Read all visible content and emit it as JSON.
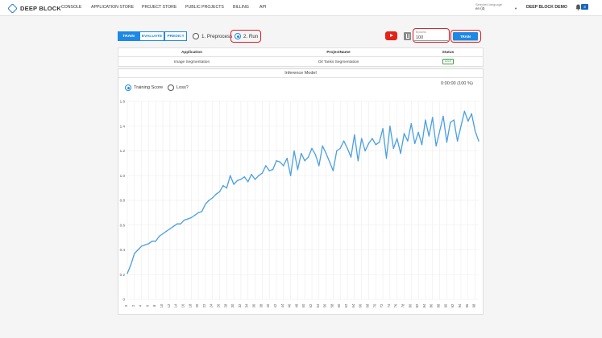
{
  "app": {
    "logo_text": "DEEP BLOCK",
    "nav": [
      "CONSOLE",
      "APPLICATION STORE",
      "PROJECT STORE",
      "PUBLIC PROJECTS",
      "BILLING",
      "API"
    ],
    "language_label": "Selected language",
    "language_value": "en (it)",
    "user_name": "DEEP BLOCK DEMO",
    "notification_count": "3"
  },
  "controls": {
    "modes": [
      "TRAIN",
      "EVALUATE",
      "PREDICT"
    ],
    "active_mode": "TRAIN",
    "steps": [
      "1. Preprocess",
      "2. Run"
    ],
    "selected_step": "2. Run",
    "epochs_label": "Epochs",
    "epochs_value": "100",
    "train_button": "TRAIN"
  },
  "info_table": {
    "headers": [
      "Application",
      "ProjectName",
      "Status"
    ],
    "row": {
      "application": "Image Segmentation",
      "project_name": "Oil Tanks Segmentation",
      "status": "IDLE"
    }
  },
  "panel": {
    "title": "Inference Model",
    "metric_options": [
      "Training Score",
      "Loss"
    ],
    "selected_metric": "Training Score",
    "timer": "0:00:00 (100 %)"
  },
  "colors": {
    "accent": "#1e88e5",
    "highlight": "#d8232a",
    "line": "#4a9fe0"
  },
  "chart_data": {
    "type": "line",
    "title": "",
    "xlabel": "",
    "ylabel": "",
    "ylim": [
      0,
      1.6
    ],
    "yticks": [
      0,
      0.2,
      0.4,
      0.6,
      0.8,
      1.0,
      1.2,
      1.4,
      1.6
    ],
    "xticks": [
      0,
      2,
      4,
      6,
      8,
      10,
      12,
      14,
      16,
      18,
      20,
      22,
      24,
      26,
      28,
      30,
      32,
      34,
      36,
      38,
      40,
      42,
      44,
      46,
      48,
      50,
      52,
      54,
      56,
      58,
      60,
      62,
      64,
      66,
      68,
      70,
      72,
      74,
      76,
      78,
      80,
      82,
      84,
      86,
      88,
      90,
      92,
      94,
      96,
      98
    ],
    "grid": true,
    "series": [
      {
        "name": "Training Score",
        "values": [
          0.21,
          0.28,
          0.37,
          0.4,
          0.43,
          0.44,
          0.45,
          0.47,
          0.47,
          0.51,
          0.53,
          0.55,
          0.57,
          0.59,
          0.61,
          0.61,
          0.64,
          0.65,
          0.66,
          0.68,
          0.7,
          0.71,
          0.77,
          0.8,
          0.82,
          0.85,
          0.87,
          0.92,
          0.9,
          1.0,
          0.93,
          0.96,
          0.97,
          0.99,
          0.95,
          1.01,
          0.97,
          1.0,
          1.02,
          1.08,
          1.04,
          1.05,
          1.12,
          1.11,
          1.08,
          1.14,
          1.0,
          1.2,
          1.05,
          1.18,
          1.12,
          1.15,
          1.22,
          1.17,
          1.08,
          1.24,
          1.18,
          1.11,
          1.04,
          1.2,
          1.22,
          1.28,
          1.22,
          1.15,
          1.33,
          1.12,
          1.3,
          1.2,
          1.26,
          1.3,
          1.25,
          1.27,
          1.38,
          1.14,
          1.4,
          1.22,
          1.3,
          1.18,
          1.34,
          1.28,
          1.42,
          1.26,
          1.35,
          1.25,
          1.45,
          1.32,
          1.47,
          1.24,
          1.36,
          1.48,
          1.27,
          1.43,
          1.45,
          1.28,
          1.4,
          1.52,
          1.44,
          1.5,
          1.36,
          1.28
        ]
      }
    ]
  }
}
